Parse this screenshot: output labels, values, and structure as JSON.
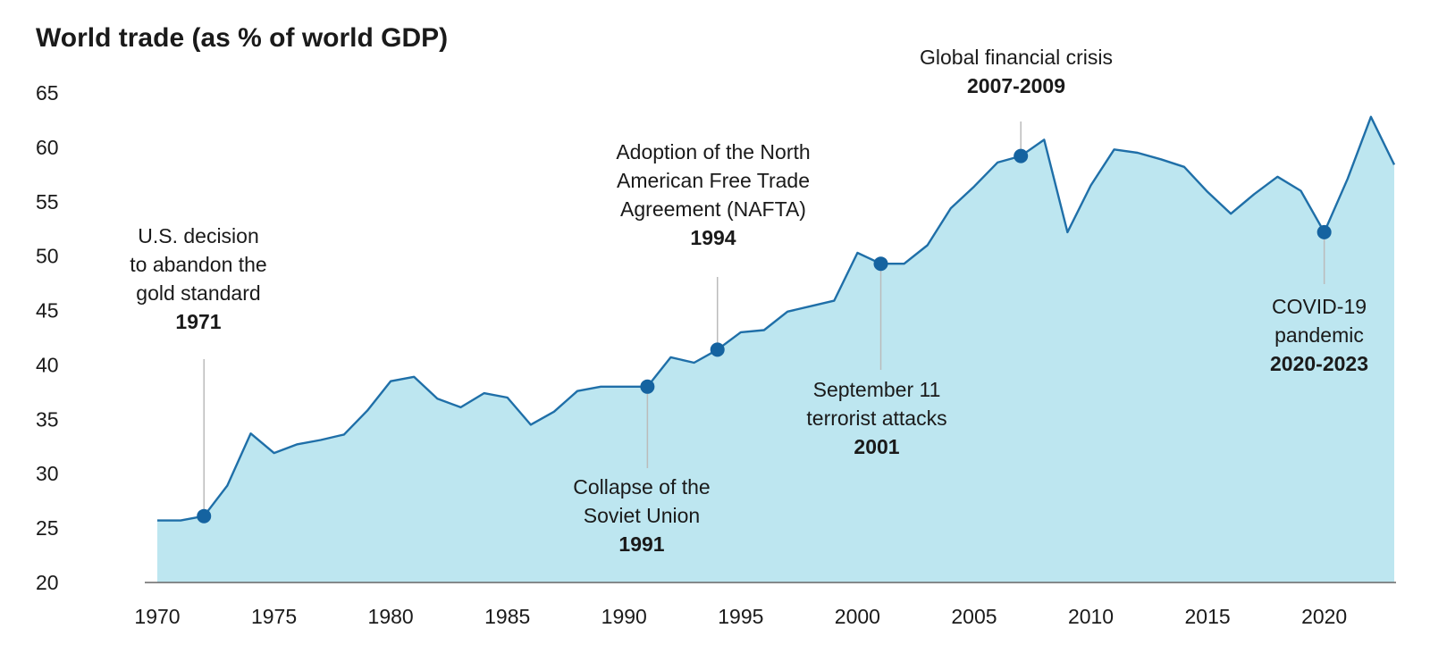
{
  "chart_data": {
    "type": "area",
    "title": "World trade (as % of world GDP)",
    "xlabel": "",
    "ylabel": "",
    "xlim": [
      1970,
      2023
    ],
    "ylim": [
      20,
      65
    ],
    "y_ticks": [
      20,
      25,
      30,
      35,
      40,
      45,
      50,
      55,
      60,
      65
    ],
    "x_ticks": [
      1970,
      1975,
      1980,
      1985,
      1990,
      1995,
      2000,
      2005,
      2010,
      2015,
      2020
    ],
    "grid": false,
    "colors": {
      "line": "#1f6fa8",
      "fill": "#bde6f0",
      "marker": "#1563a0",
      "leader": "#bbbbbb",
      "axis": "#666666"
    },
    "series": [
      {
        "x": [
          1970,
          1971,
          1972,
          1973,
          1974,
          1975,
          1976,
          1977,
          1978,
          1979,
          1980,
          1981,
          1982,
          1983,
          1984,
          1985,
          1986,
          1987,
          1988,
          1989,
          1990,
          1991,
          1992,
          1993,
          1994,
          1995,
          1996,
          1997,
          1998,
          1999,
          2000,
          2001,
          2002,
          2003,
          2004,
          2005,
          2006,
          2007,
          2008,
          2009,
          2010,
          2011,
          2012,
          2013,
          2014,
          2015,
          2016,
          2017,
          2018,
          2019,
          2020,
          2021,
          2022,
          2023
        ],
        "y": [
          25.7,
          25.7,
          26.1,
          28.9,
          33.7,
          31.9,
          32.7,
          33.1,
          33.6,
          35.8,
          38.5,
          38.9,
          36.9,
          36.1,
          37.4,
          37.0,
          34.5,
          35.7,
          37.6,
          38.0,
          38.0,
          38.0,
          40.7,
          40.2,
          41.4,
          43.0,
          43.2,
          44.9,
          45.4,
          45.9,
          50.3,
          49.3,
          49.3,
          51.0,
          54.4,
          56.4,
          58.6,
          59.2,
          60.7,
          52.2,
          56.5,
          59.8,
          59.5,
          58.9,
          58.2,
          55.9,
          53.9,
          55.7,
          57.3,
          56.0,
          52.2,
          57.1,
          62.8,
          58.4
        ]
      }
    ],
    "annotations": [
      {
        "x": 1972,
        "y": 26.1,
        "lines": [
          "U.S. decision",
          "to abandon the",
          "gold standard"
        ],
        "year": "1971"
      },
      {
        "x": 1991,
        "y": 38.0,
        "lines": [
          "Collapse of the",
          "Soviet Union"
        ],
        "year": "1991"
      },
      {
        "x": 1994,
        "y": 41.4,
        "lines": [
          "Adoption of the North",
          "American Free Trade",
          "Agreement (NAFTA)"
        ],
        "year": "1994"
      },
      {
        "x": 2001,
        "y": 49.3,
        "lines": [
          "September 11",
          "terrorist attacks"
        ],
        "year": "2001"
      },
      {
        "x": 2007,
        "y": 59.2,
        "lines": [
          "Global financial crisis"
        ],
        "year": "2007-2009"
      },
      {
        "x": 2020,
        "y": 52.2,
        "lines": [
          "COVID-19",
          "pandemic"
        ],
        "year": "2020-2023"
      }
    ]
  }
}
